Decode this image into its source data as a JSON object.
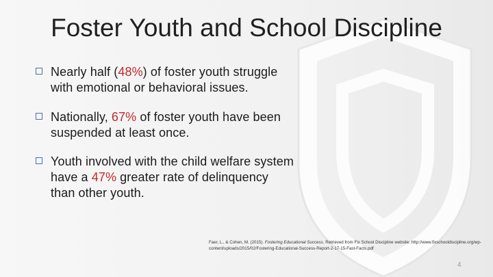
{
  "slide": {
    "title": "Foster Youth and School Discipline",
    "bullets": [
      {
        "pre": "Nearly half (",
        "highlight": "48%",
        "post": ") of foster youth struggle with emotional or behavioral issues."
      },
      {
        "pre": "Nationally, ",
        "highlight": "67%",
        "post": " of foster youth have been suspended at least once."
      },
      {
        "pre": "Youth involved with the child welfare system have a ",
        "highlight": "47%",
        "post": " greater rate of delinquency than other youth."
      }
    ],
    "citation": {
      "authors": "Faer, L., & Cohen, M. (2015). ",
      "work": "Fostering Educational Success",
      "rest": ". Retrieved from Fix School Discipline website: http://www.fixschooldiscipline.org/wp-content/uploads/2015/02/Fostering-Educational-Success-Report-2-17-15-Fast-Facts.pdf"
    },
    "page_number": "4",
    "colors": {
      "highlight": "#c0282c",
      "bullet_box": "#4a6fa3"
    },
    "icons": {
      "bullet": "square-bullet-icon",
      "watermark": "watermark-logo-icon"
    }
  }
}
